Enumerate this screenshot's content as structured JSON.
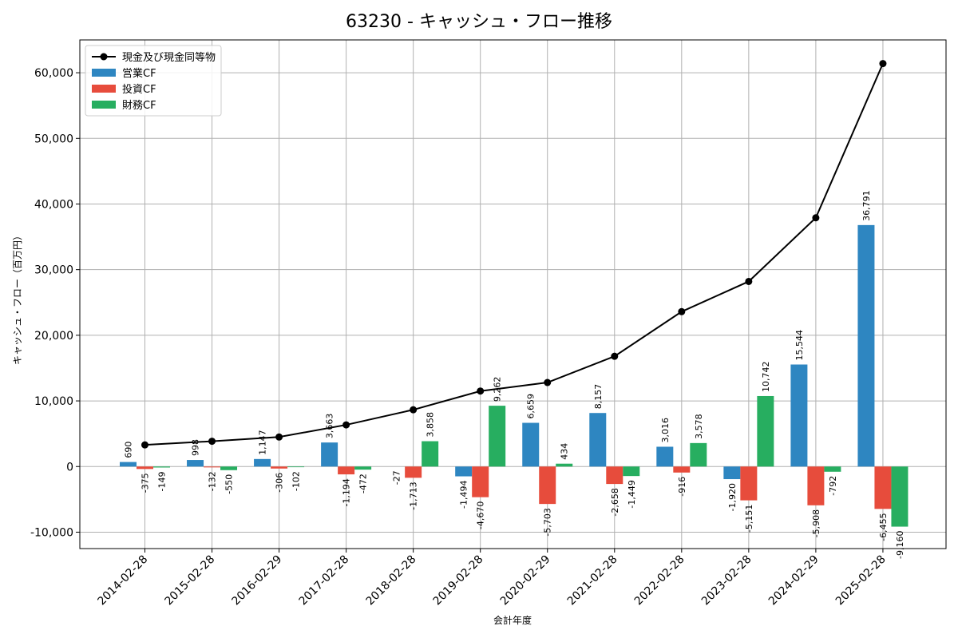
{
  "chart_data": {
    "type": "bar",
    "title": "63230 - キャッシュ・フロー推移",
    "xlabel": "会計年度",
    "ylabel": "キャッシュ・フロー（百万円）",
    "ylim": [
      -12500,
      65000
    ],
    "yticks": [
      -10000,
      0,
      10000,
      20000,
      30000,
      40000,
      50000,
      60000
    ],
    "ytick_labels": [
      "-10,000",
      "0",
      "10,000",
      "20,000",
      "30,000",
      "40,000",
      "50,000",
      "60,000"
    ],
    "grid": true,
    "legend_position": "top-left",
    "categories": [
      "2014-02-28",
      "2015-02-28",
      "2016-02-29",
      "2017-02-28",
      "2018-02-28",
      "2019-02-28",
      "2020-02-29",
      "2021-02-28",
      "2022-02-28",
      "2023-02-28",
      "2024-02-29",
      "2025-02-28"
    ],
    "series": [
      {
        "name": "営業CF",
        "kind": "bar",
        "color": "#2e86c1",
        "values": [
          690,
          998,
          1147,
          3663,
          null,
          -1494,
          6659,
          8157,
          3016,
          -1920,
          15544,
          36791
        ],
        "labels": [
          "690",
          "998",
          "1,147",
          "3,663",
          "",
          "-1,494",
          "6,659",
          "8,157",
          "3,016",
          "-1,920",
          "15,544",
          "36,791"
        ]
      },
      {
        "name": "投資CF",
        "kind": "bar",
        "color": "#e74c3c",
        "values": [
          -375,
          -132,
          -306,
          -1194,
          -1713,
          -4670,
          -5703,
          -2658,
          -916,
          -5151,
          -5908,
          -6455
        ],
        "labels": [
          "-375",
          "-132",
          "-306",
          "-1,194",
          "-1,713",
          "-4,670",
          "-5,703",
          "-2,658",
          "-916",
          "-5,151",
          "-5,908",
          "-6,455"
        ]
      },
      {
        "name": "財務CF",
        "kind": "bar",
        "color": "#27ae60",
        "values": [
          -149,
          -550,
          -102,
          -472,
          3858,
          9262,
          434,
          -1449,
          3578,
          10742,
          -792,
          -9160
        ],
        "labels": [
          "-149",
          "-550",
          "-102",
          "-472",
          "3,858",
          "9,262",
          "434",
          "-1,449",
          "3,578",
          "10,742",
          "-792",
          "-9,160"
        ]
      },
      {
        "name": "現金及び現金同等物",
        "kind": "line",
        "color": "#000000",
        "values": [
          3300,
          3850,
          4500,
          6350,
          8650,
          11500,
          12800,
          16800,
          23600,
          28200,
          37900,
          61400
        ]
      }
    ],
    "extra_labels": [
      {
        "category_index": 4,
        "text": "-27"
      }
    ]
  }
}
